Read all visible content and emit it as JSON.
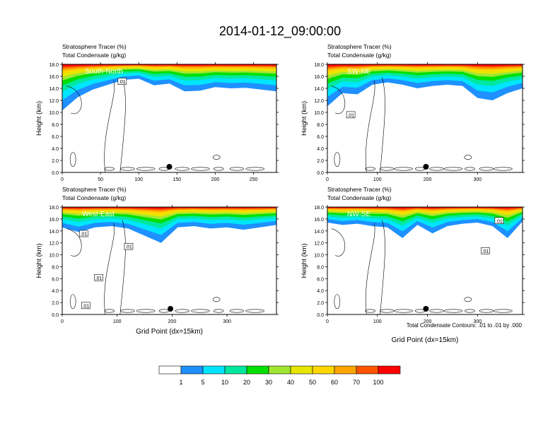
{
  "figure": {
    "title": "2014-01-12_09:00:00",
    "contour_note": "Total Condensate Contours: .01 to .01 by .000"
  },
  "chart_data": [
    {
      "type": "heatmap",
      "panel_label": "South-North",
      "title_line1": "Stratosphere Tracer   (%)",
      "title_line2": "Total Condensate   (g/kg)",
      "ylabel": "Height (km)",
      "xlabel": "",
      "xlim": [
        0,
        280
      ],
      "ylim": [
        0,
        18
      ],
      "xticks": [
        0,
        50,
        100,
        150,
        200,
        250
      ],
      "yticks": [
        "0.0",
        "2.0",
        "4.0",
        "6.0",
        "8.0",
        "10.0",
        "12.0",
        "14.0",
        "16.0",
        "18.0"
      ],
      "marker_x": 140,
      "contour_labels": [
        ".01"
      ],
      "tracer_profile": {
        "x": [
          0,
          20,
          40,
          60,
          80,
          100,
          120,
          140,
          160,
          180,
          200,
          220,
          240,
          260,
          280
        ],
        "bottom_km": [
          10.3,
          12.5,
          13.8,
          14.6,
          15.4,
          15.6,
          14.5,
          14.8,
          13.5,
          13.6,
          14.2,
          14.0,
          14.1,
          13.8,
          13.5
        ]
      }
    },
    {
      "type": "heatmap",
      "panel_label": "SW-NE",
      "title_line1": "Stratosphere Tracer   (%)",
      "title_line2": "Total Condensate   (g/kg)",
      "ylabel": "Height (km)",
      "xlabel": "",
      "xlim": [
        0,
        390
      ],
      "ylim": [
        0,
        18
      ],
      "xticks": [
        0,
        100,
        200,
        300
      ],
      "yticks": [
        "0.0",
        "2.0",
        "4.0",
        "6.0",
        "8.0",
        "10.0",
        "12.0",
        "14.0",
        "16.0",
        "18.0"
      ],
      "marker_x": 197,
      "contour_labels": [
        ".01"
      ],
      "tracer_profile": {
        "x": [
          0,
          30,
          60,
          90,
          120,
          150,
          180,
          210,
          240,
          270,
          300,
          330,
          360,
          390
        ],
        "bottom_km": [
          11.0,
          13.2,
          13.0,
          14.6,
          15.0,
          14.6,
          14.0,
          14.4,
          14.6,
          14.4,
          12.4,
          12.0,
          13.2,
          14.0
        ]
      }
    },
    {
      "type": "heatmap",
      "panel_label": "West-East",
      "title_line1": "Stratosphere Tracer   (%)",
      "title_line2": "Total Condensate   (g/kg)",
      "ylabel": "Height (km)",
      "xlabel": "Grid Point (dx=15km)",
      "xlim": [
        0,
        390
      ],
      "ylim": [
        0,
        18
      ],
      "xticks": [
        0,
        100,
        200,
        300
      ],
      "yticks": [
        "0.0",
        "2.0",
        "4.0",
        "6.0",
        "8.0",
        "10.0",
        "12.0",
        "14.0",
        "16.0",
        "18.0"
      ],
      "marker_x": 197,
      "contour_labels": [
        ".01",
        ".01",
        ".01",
        ".01"
      ],
      "tracer_profile": {
        "x": [
          0,
          30,
          60,
          90,
          120,
          150,
          180,
          210,
          240,
          270,
          300,
          330,
          360,
          390
        ],
        "bottom_km": [
          14.6,
          13.8,
          14.6,
          14.8,
          14.4,
          13.2,
          12.0,
          14.6,
          14.8,
          14.4,
          14.6,
          14.2,
          14.6,
          15.0
        ]
      }
    },
    {
      "type": "heatmap",
      "panel_label": "NW-SE",
      "title_line1": "Stratosphere Tracer   (%)",
      "title_line2": "Total Condensate   (g/kg)",
      "ylabel": "Height (km)",
      "xlabel": "Grid Point (dx=15km)",
      "xlim": [
        0,
        390
      ],
      "ylim": [
        0,
        18
      ],
      "xticks": [
        0,
        100,
        200,
        300
      ],
      "yticks": [
        "0.0",
        "2.0",
        "4.0",
        "6.0",
        "8.0",
        "10.0",
        "12.0",
        "14.0",
        "16.0",
        "18.0"
      ],
      "marker_x": 197,
      "contour_labels": [
        ".01",
        ".01"
      ],
      "tracer_profile": {
        "x": [
          0,
          30,
          60,
          90,
          120,
          150,
          180,
          210,
          240,
          270,
          300,
          330,
          360,
          390
        ],
        "bottom_km": [
          15.4,
          15.0,
          15.2,
          14.8,
          14.6,
          12.8,
          15.0,
          13.6,
          14.8,
          15.2,
          15.4,
          14.8,
          12.8,
          15.6
        ]
      }
    }
  ],
  "colorbar": {
    "labels": [
      "1",
      "5",
      "10",
      "20",
      "30",
      "40",
      "50",
      "60",
      "70",
      "100"
    ],
    "colors": [
      "#ffffff",
      "#1e90ff",
      "#00e5ff",
      "#00e8a0",
      "#00e000",
      "#a0e632",
      "#e6e600",
      "#ffd700",
      "#ffa500",
      "#ff5500",
      "#ff0000"
    ]
  }
}
